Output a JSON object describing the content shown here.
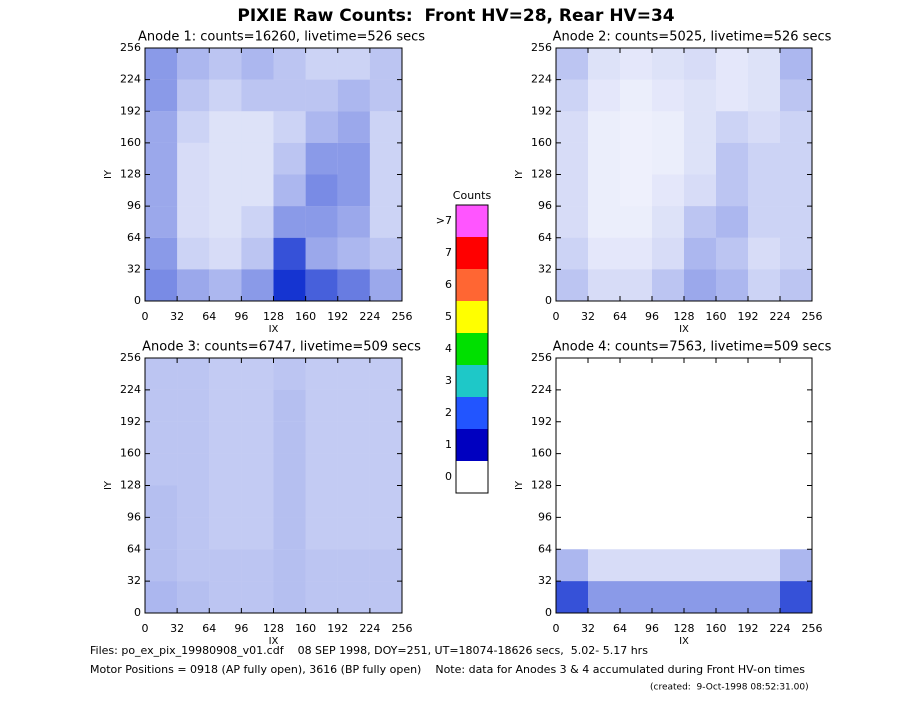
{
  "title": "PIXIE Raw Counts:  Front HV=28, Rear HV=34",
  "chart_data": [
    {
      "type": "heatmap",
      "title": "Anode 1: counts=16260, livetime=526 secs",
      "xlabel": "IX",
      "ylabel": "IY",
      "xlim": [
        0,
        256
      ],
      "ylim": [
        0,
        256
      ],
      "xticks": [
        0,
        32,
        64,
        96,
        128,
        160,
        192,
        224,
        256
      ],
      "yticks": [
        0,
        32,
        64,
        96,
        128,
        160,
        192,
        224,
        256
      ],
      "color": "#1030d0",
      "values": [
        [
          0.35,
          0.25,
          0.2,
          0.25,
          0.2,
          0.15,
          0.15,
          0.2
        ],
        [
          0.35,
          0.2,
          0.15,
          0.2,
          0.2,
          0.2,
          0.25,
          0.2
        ],
        [
          0.3,
          0.15,
          0.1,
          0.1,
          0.15,
          0.25,
          0.3,
          0.15
        ],
        [
          0.3,
          0.12,
          0.1,
          0.1,
          0.2,
          0.35,
          0.35,
          0.15
        ],
        [
          0.3,
          0.12,
          0.1,
          0.1,
          0.25,
          0.4,
          0.35,
          0.15
        ],
        [
          0.3,
          0.12,
          0.1,
          0.15,
          0.35,
          0.35,
          0.3,
          0.15
        ],
        [
          0.35,
          0.15,
          0.12,
          0.2,
          0.6,
          0.3,
          0.25,
          0.2
        ],
        [
          0.4,
          0.3,
          0.25,
          0.35,
          0.7,
          0.55,
          0.45,
          0.3
        ]
      ]
    },
    {
      "type": "heatmap",
      "title": "Anode 2: counts=5025, livetime=526 secs",
      "xlabel": "IX",
      "ylabel": "IY",
      "xlim": [
        0,
        256
      ],
      "ylim": [
        0,
        256
      ],
      "xticks": [
        0,
        32,
        64,
        96,
        128,
        160,
        192,
        224,
        256
      ],
      "yticks": [
        0,
        32,
        64,
        96,
        128,
        160,
        192,
        224,
        256
      ],
      "color": "#1030d0",
      "values": [
        [
          0.2,
          0.1,
          0.08,
          0.1,
          0.12,
          0.08,
          0.1,
          0.25
        ],
        [
          0.15,
          0.08,
          0.06,
          0.08,
          0.1,
          0.08,
          0.1,
          0.2
        ],
        [
          0.12,
          0.06,
          0.05,
          0.06,
          0.1,
          0.15,
          0.12,
          0.15
        ],
        [
          0.12,
          0.06,
          0.05,
          0.06,
          0.1,
          0.2,
          0.15,
          0.15
        ],
        [
          0.12,
          0.06,
          0.05,
          0.08,
          0.12,
          0.2,
          0.15,
          0.15
        ],
        [
          0.12,
          0.06,
          0.06,
          0.1,
          0.2,
          0.25,
          0.15,
          0.15
        ],
        [
          0.15,
          0.08,
          0.08,
          0.12,
          0.25,
          0.2,
          0.12,
          0.15
        ],
        [
          0.2,
          0.12,
          0.12,
          0.2,
          0.3,
          0.25,
          0.15,
          0.2
        ]
      ]
    },
    {
      "type": "heatmap",
      "title": "Anode 3: counts=6747, livetime=509 secs",
      "xlabel": "IX",
      "ylabel": "IY",
      "xlim": [
        0,
        256
      ],
      "ylim": [
        0,
        256
      ],
      "xticks": [
        0,
        32,
        64,
        96,
        128,
        160,
        192,
        224,
        256
      ],
      "yticks": [
        0,
        32,
        64,
        96,
        128,
        160,
        192,
        224,
        256
      ],
      "color": "#1030d0",
      "values": [
        [
          0.2,
          0.2,
          0.18,
          0.18,
          0.2,
          0.18,
          0.18,
          0.18
        ],
        [
          0.2,
          0.2,
          0.18,
          0.18,
          0.22,
          0.18,
          0.18,
          0.18
        ],
        [
          0.2,
          0.2,
          0.18,
          0.18,
          0.22,
          0.18,
          0.18,
          0.18
        ],
        [
          0.2,
          0.2,
          0.18,
          0.18,
          0.22,
          0.18,
          0.18,
          0.18
        ],
        [
          0.22,
          0.2,
          0.18,
          0.18,
          0.22,
          0.18,
          0.18,
          0.18
        ],
        [
          0.22,
          0.2,
          0.18,
          0.18,
          0.22,
          0.18,
          0.18,
          0.18
        ],
        [
          0.22,
          0.2,
          0.2,
          0.2,
          0.22,
          0.2,
          0.2,
          0.2
        ],
        [
          0.25,
          0.22,
          0.2,
          0.2,
          0.22,
          0.2,
          0.2,
          0.2
        ]
      ]
    },
    {
      "type": "heatmap",
      "title": "Anode 4: counts=7563, livetime=509 secs",
      "xlabel": "IX",
      "ylabel": "IY",
      "xlim": [
        0,
        256
      ],
      "ylim": [
        0,
        256
      ],
      "xticks": [
        0,
        32,
        64,
        96,
        128,
        160,
        192,
        224,
        256
      ],
      "yticks": [
        0,
        32,
        64,
        96,
        128,
        160,
        192,
        224,
        256
      ],
      "color": "#1030d0",
      "values": [
        [
          0,
          0,
          0,
          0,
          0,
          0,
          0,
          0
        ],
        [
          0,
          0,
          0,
          0,
          0,
          0,
          0,
          0
        ],
        [
          0,
          0,
          0,
          0,
          0,
          0,
          0,
          0
        ],
        [
          0,
          0,
          0,
          0,
          0,
          0,
          0,
          0
        ],
        [
          0,
          0,
          0,
          0,
          0,
          0,
          0,
          0
        ],
        [
          0,
          0,
          0,
          0,
          0,
          0,
          0,
          0
        ],
        [
          0.25,
          0.12,
          0.12,
          0.12,
          0.12,
          0.12,
          0.12,
          0.25
        ],
        [
          0.6,
          0.35,
          0.35,
          0.35,
          0.35,
          0.35,
          0.35,
          0.6
        ]
      ]
    }
  ],
  "colorbar": {
    "title": "Counts",
    "bins": [
      {
        "label": "0",
        "color": "#ffffff"
      },
      {
        "label": "1",
        "color": "#0000c0"
      },
      {
        "label": "2",
        "color": "#2255ff"
      },
      {
        "label": "3",
        "color": "#1ec8c8"
      },
      {
        "label": "4",
        "color": "#00e000"
      },
      {
        "label": "5",
        "color": "#ffff00"
      },
      {
        "label": "6",
        "color": "#ff6633"
      },
      {
        "label": "7",
        "color": "#ff0000"
      },
      {
        "label": ">7",
        "color": "#ff55ff"
      }
    ]
  },
  "footer": [
    "Files: po_ex_pix_19980908_v01.cdf    08 SEP 1998, DOY=251, UT=18074-18626 secs,  5.02- 5.17 hrs",
    "Motor Positions = 0918 (AP fully open), 3616 (BP fully open)    Note: data for Anodes 3 & 4 accumulated during Front HV-on times",
    "(created:  9-Oct-1998 08:52:31.00)"
  ]
}
